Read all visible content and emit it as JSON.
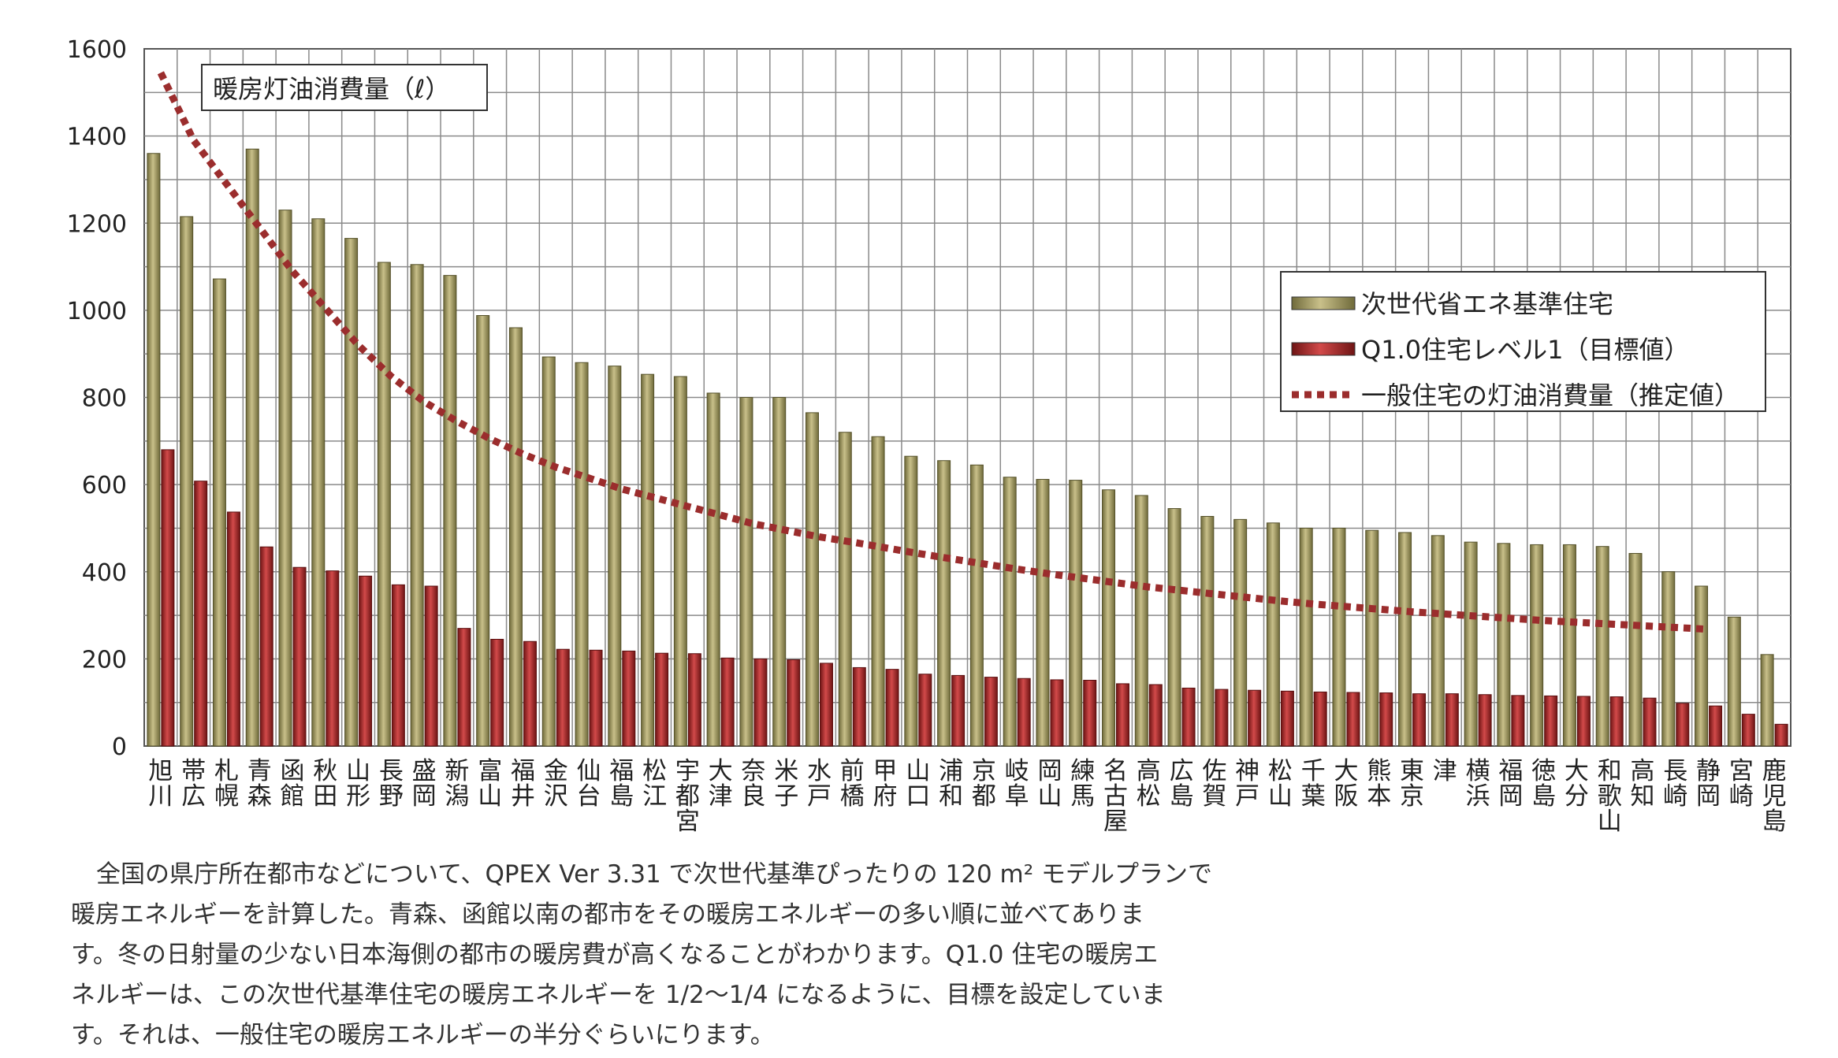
{
  "chart_data": {
    "type": "bar",
    "title": "暖房灯油消費量（ℓ）",
    "ylim": [
      0,
      1600
    ],
    "yticks": [
      "0",
      "200",
      "400",
      "600",
      "800",
      "1000",
      "1200",
      "1400",
      "1600"
    ],
    "grid": true,
    "legend_position": "right",
    "categories": [
      "旭川",
      "帯広",
      "札幌",
      "青森",
      "函館",
      "秋田",
      "山形",
      "長野",
      "盛岡",
      "新潟",
      "富山",
      "福井",
      "金沢",
      "仙台",
      "福島",
      "松江",
      "宇都宮",
      "大津",
      "奈良",
      "米子",
      "水戸",
      "前橋",
      "甲府",
      "山口",
      "浦和",
      "京都",
      "岐阜",
      "岡山",
      "練馬",
      "名古屋",
      "高松",
      "広島",
      "佐賀",
      "神戸",
      "松山",
      "千葉",
      "大阪",
      "熊本",
      "東京",
      "津",
      "横浜",
      "福岡",
      "徳島",
      "大分",
      "和歌山",
      "高知",
      "長崎",
      "静岡",
      "宮崎",
      "鹿児島"
    ],
    "series": [
      {
        "name": "次世代省エネ基準住宅",
        "kind": "bar",
        "color": "#a39a5a",
        "values": [
          1360,
          1215,
          1072,
          1370,
          1230,
          1210,
          1165,
          1110,
          1105,
          1080,
          988,
          960,
          893,
          880,
          872,
          853,
          848,
          810,
          800,
          800,
          765,
          720,
          710,
          665,
          655,
          645,
          617,
          612,
          610,
          588,
          575,
          545,
          527,
          520,
          512,
          500,
          500,
          495,
          490,
          483,
          468,
          465,
          462,
          462,
          458,
          442,
          400,
          367,
          296,
          210
        ]
      },
      {
        "name": "Q1.0住宅レベル1（目標値）",
        "kind": "bar",
        "color": "#b52a2a",
        "values": [
          680,
          608,
          537,
          457,
          410,
          402,
          390,
          370,
          367,
          270,
          245,
          240,
          222,
          220,
          218,
          213,
          212,
          202,
          200,
          198,
          190,
          180,
          176,
          165,
          162,
          158,
          155,
          152,
          151,
          143,
          141,
          133,
          130,
          128,
          126,
          124,
          123,
          122,
          120,
          120,
          118,
          116,
          115,
          114,
          113,
          110,
          98,
          92,
          73,
          50
        ]
      },
      {
        "name": "一般住宅の灯油消費量（推定値）",
        "kind": "line",
        "style": "dotted",
        "color": "#9b2d2d",
        "values": [
          1545,
          1390,
          1290,
          1190,
          1090,
          1005,
          920,
          848,
          790,
          745,
          705,
          670,
          640,
          615,
          590,
          570,
          550,
          530,
          510,
          495,
          480,
          468,
          455,
          442,
          430,
          418,
          406,
          395,
          385,
          375,
          365,
          357,
          349,
          341,
          333,
          326,
          320,
          314,
          308,
          303,
          298,
          293,
          288,
          284,
          280,
          276,
          272,
          268,
          null,
          null
        ]
      }
    ]
  },
  "caption": {
    "lines": [
      "全国の県庁所在都市などについて、QPEX Ver 3.31 で次世代基準ぴったりの 120 m² モデルプランで",
      "暖房エネルギーを計算した。青森、函館以南の都市をその暖房エネルギーの多い順に並べてありま",
      "す。冬の日射量の少ない日本海側の都市の暖房費が高くなることがわかります。Q1.0 住宅の暖房エ",
      "ネルギーは、この次世代基準住宅の暖房エネルギーを 1/2〜1/4 になるように、目標を設定していま",
      "す。それは、一般住宅の暖房エネルギーの半分ぐらいにります。"
    ]
  }
}
